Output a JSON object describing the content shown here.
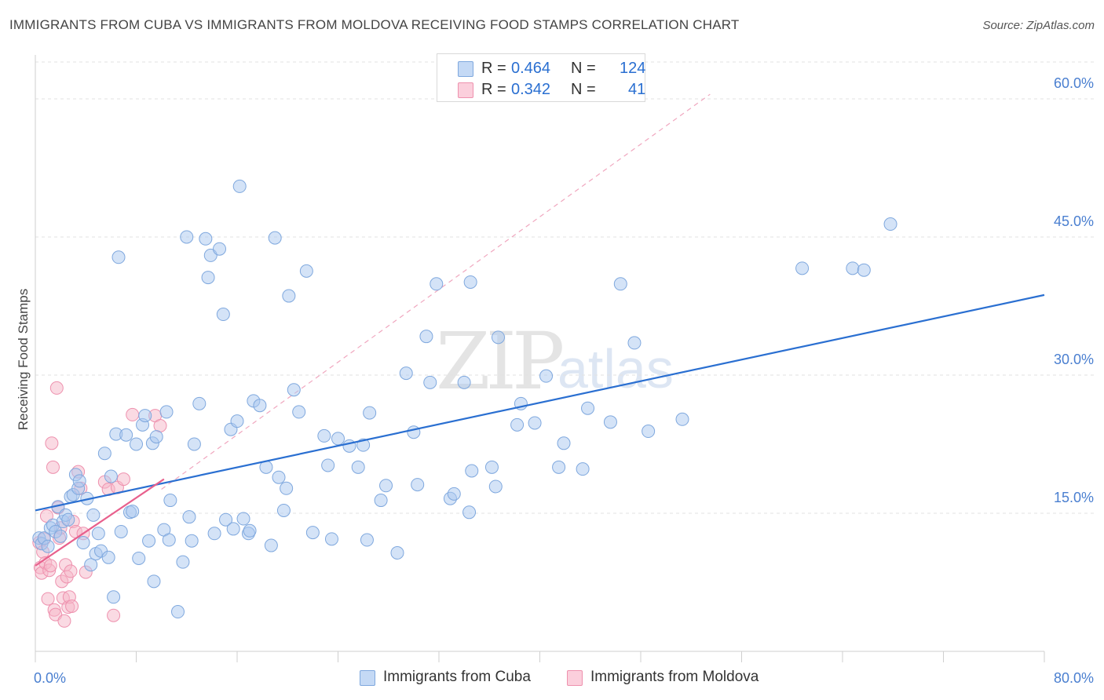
{
  "title": "IMMIGRANTS FROM CUBA VS IMMIGRANTS FROM MOLDOVA RECEIVING FOOD STAMPS CORRELATION CHART",
  "source": "Source: ZipAtlas.com",
  "watermark": {
    "zip": "ZIP",
    "atlas": "atlas"
  },
  "legend": {
    "cuba": {
      "r_label": "R =",
      "r_value": "0.464",
      "n_label": "N =",
      "n_value": "124"
    },
    "moldova": {
      "r_label": "R =",
      "r_value": "0.342",
      "n_label": "N =",
      "n_value": "41"
    }
  },
  "colors": {
    "cuba_fill": "#a9c8f0",
    "cuba_stroke": "#7fa8de",
    "cuba_line": "#2a6fd1",
    "moldova_fill": "#f6b6c8",
    "moldova_stroke": "#ee91ae",
    "moldova_line": "#e8608d"
  },
  "chart_data": {
    "type": "scatter",
    "title": "IMMIGRANTS FROM CUBA VS IMMIGRANTS FROM MOLDOVA RECEIVING FOOD STAMPS CORRELATION CHART",
    "xlabel": "",
    "ylabel": "Receiving Food Stamps",
    "xlim": [
      0,
      80
    ],
    "ylim": [
      0,
      64
    ],
    "x_ticks": [
      0,
      8,
      16,
      24,
      32,
      40,
      48,
      56,
      64,
      72,
      80
    ],
    "x_tick_labels": [
      {
        "value": 0,
        "label": "0.0%"
      },
      {
        "value": 80,
        "label": "80.0%"
      }
    ],
    "y_ticks": [
      {
        "value": 15,
        "label": "15.0%"
      },
      {
        "value": 30,
        "label": "30.0%"
      },
      {
        "value": 45,
        "label": "45.0%"
      },
      {
        "value": 60,
        "label": "60.0%"
      }
    ],
    "grid": true,
    "legend_position": "top-center",
    "series": [
      {
        "name": "Immigrants from Cuba",
        "R": 0.464,
        "N": 124,
        "trend": [
          [
            0,
            15.3
          ],
          [
            80,
            38.7
          ]
        ],
        "points": [
          [
            0.3,
            12.3
          ],
          [
            0.5,
            11.7
          ],
          [
            0.7,
            12.3
          ],
          [
            1.0,
            11.4
          ],
          [
            1.2,
            13.4
          ],
          [
            1.4,
            13.7
          ],
          [
            1.6,
            13.0
          ],
          [
            1.8,
            15.7
          ],
          [
            2.0,
            12.5
          ],
          [
            2.2,
            14.1
          ],
          [
            2.4,
            14.8
          ],
          [
            2.6,
            14.3
          ],
          [
            2.8,
            16.8
          ],
          [
            3.0,
            17.0
          ],
          [
            3.2,
            19.2
          ],
          [
            3.4,
            17.7
          ],
          [
            3.5,
            18.5
          ],
          [
            3.8,
            11.8
          ],
          [
            4.1,
            16.6
          ],
          [
            4.4,
            9.4
          ],
          [
            4.6,
            14.8
          ],
          [
            4.8,
            10.6
          ],
          [
            5.0,
            12.8
          ],
          [
            5.2,
            10.9
          ],
          [
            5.5,
            21.5
          ],
          [
            5.8,
            10.2
          ],
          [
            6.0,
            19.0
          ],
          [
            6.2,
            5.9
          ],
          [
            6.4,
            23.6
          ],
          [
            6.6,
            42.8
          ],
          [
            6.8,
            13.0
          ],
          [
            7.2,
            23.5
          ],
          [
            7.5,
            15.1
          ],
          [
            7.7,
            15.2
          ],
          [
            8.0,
            22.5
          ],
          [
            8.2,
            10.1
          ],
          [
            8.5,
            24.6
          ],
          [
            8.7,
            25.6
          ],
          [
            9.0,
            12.0
          ],
          [
            9.3,
            22.6
          ],
          [
            9.4,
            7.6
          ],
          [
            9.6,
            23.3
          ],
          [
            10.2,
            13.2
          ],
          [
            10.4,
            26.0
          ],
          [
            10.6,
            12.1
          ],
          [
            10.7,
            16.4
          ],
          [
            11.3,
            4.3
          ],
          [
            11.7,
            9.7
          ],
          [
            12.0,
            45.0
          ],
          [
            12.2,
            14.6
          ],
          [
            12.4,
            12.0
          ],
          [
            12.6,
            22.5
          ],
          [
            13.0,
            26.9
          ],
          [
            13.5,
            44.8
          ],
          [
            13.7,
            40.6
          ],
          [
            13.9,
            43.0
          ],
          [
            14.2,
            12.8
          ],
          [
            14.6,
            43.7
          ],
          [
            14.9,
            36.6
          ],
          [
            15.1,
            14.3
          ],
          [
            15.5,
            24.1
          ],
          [
            15.7,
            13.3
          ],
          [
            16.0,
            25.0
          ],
          [
            16.2,
            50.5
          ],
          [
            16.5,
            14.4
          ],
          [
            16.9,
            12.8
          ],
          [
            17.0,
            13.1
          ],
          [
            17.3,
            27.2
          ],
          [
            17.8,
            26.7
          ],
          [
            18.3,
            20.0
          ],
          [
            18.7,
            11.5
          ],
          [
            19.0,
            44.9
          ],
          [
            19.3,
            18.9
          ],
          [
            19.7,
            15.3
          ],
          [
            19.9,
            17.7
          ],
          [
            20.1,
            38.6
          ],
          [
            20.5,
            28.4
          ],
          [
            20.9,
            26.0
          ],
          [
            21.5,
            41.3
          ],
          [
            22.0,
            12.9
          ],
          [
            22.9,
            23.4
          ],
          [
            23.2,
            20.2
          ],
          [
            23.5,
            12.2
          ],
          [
            24.0,
            23.1
          ],
          [
            24.9,
            22.3
          ],
          [
            25.6,
            20.0
          ],
          [
            26.0,
            22.4
          ],
          [
            26.3,
            12.1
          ],
          [
            26.5,
            25.9
          ],
          [
            27.4,
            16.4
          ],
          [
            27.8,
            18.0
          ],
          [
            28.7,
            10.7
          ],
          [
            29.4,
            30.2
          ],
          [
            30.0,
            23.8
          ],
          [
            30.3,
            18.1
          ],
          [
            31.0,
            34.2
          ],
          [
            31.3,
            29.2
          ],
          [
            31.8,
            39.9
          ],
          [
            32.9,
            16.6
          ],
          [
            33.2,
            17.1
          ],
          [
            34.0,
            29.2
          ],
          [
            34.4,
            15.1
          ],
          [
            34.5,
            40.1
          ],
          [
            34.6,
            19.6
          ],
          [
            36.2,
            20.0
          ],
          [
            36.5,
            17.9
          ],
          [
            36.7,
            34.1
          ],
          [
            38.2,
            24.6
          ],
          [
            38.5,
            26.9
          ],
          [
            39.6,
            24.8
          ],
          [
            40.5,
            29.9
          ],
          [
            41.5,
            20.0
          ],
          [
            41.9,
            22.6
          ],
          [
            43.4,
            19.8
          ],
          [
            43.8,
            26.4
          ],
          [
            45.6,
            24.9
          ],
          [
            46.4,
            39.9
          ],
          [
            47.5,
            33.5
          ],
          [
            48.6,
            23.9
          ],
          [
            51.3,
            25.2
          ],
          [
            60.8,
            41.6
          ],
          [
            64.8,
            41.6
          ],
          [
            65.7,
            41.4
          ],
          [
            67.8,
            46.4
          ]
        ]
      },
      {
        "name": "Immigrants from Moldova",
        "R": 0.342,
        "N": 41,
        "trend": [
          [
            0,
            9.3
          ],
          [
            10.2,
            18.7
          ]
        ],
        "points": [
          [
            0.3,
            11.8
          ],
          [
            0.4,
            9.1
          ],
          [
            0.5,
            8.5
          ],
          [
            0.6,
            10.8
          ],
          [
            0.7,
            12.2
          ],
          [
            0.8,
            9.6
          ],
          [
            0.9,
            14.7
          ],
          [
            1.0,
            5.7
          ],
          [
            1.1,
            8.8
          ],
          [
            1.2,
            9.3
          ],
          [
            1.3,
            22.6
          ],
          [
            1.4,
            20.0
          ],
          [
            1.5,
            4.5
          ],
          [
            1.6,
            4.0
          ],
          [
            1.7,
            28.6
          ],
          [
            1.8,
            15.6
          ],
          [
            1.9,
            12.3
          ],
          [
            2.0,
            13.4
          ],
          [
            2.1,
            7.6
          ],
          [
            2.2,
            5.8
          ],
          [
            2.3,
            3.3
          ],
          [
            2.4,
            9.4
          ],
          [
            2.5,
            8.1
          ],
          [
            2.6,
            4.8
          ],
          [
            2.7,
            5.9
          ],
          [
            2.8,
            8.7
          ],
          [
            2.9,
            4.9
          ],
          [
            3.0,
            14.1
          ],
          [
            3.2,
            13.0
          ],
          [
            3.4,
            19.5
          ],
          [
            3.6,
            17.7
          ],
          [
            3.8,
            12.8
          ],
          [
            4.0,
            8.6
          ],
          [
            5.5,
            18.4
          ],
          [
            5.8,
            17.6
          ],
          [
            6.2,
            3.9
          ],
          [
            6.5,
            17.8
          ],
          [
            7.0,
            18.7
          ],
          [
            7.7,
            25.7
          ],
          [
            9.5,
            25.6
          ],
          [
            9.9,
            24.5
          ]
        ]
      }
    ]
  },
  "bottom_legend": {
    "cuba": "Immigrants from Cuba",
    "moldova": "Immigrants from Moldova"
  }
}
